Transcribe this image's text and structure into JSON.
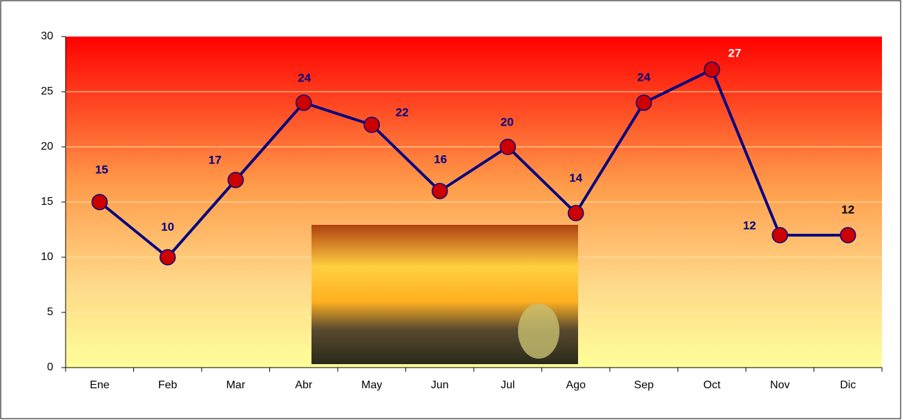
{
  "chart_data": {
    "type": "line",
    "categories": [
      "Ene",
      "Feb",
      "Mar",
      "Abr",
      "May",
      "Jun",
      "Jul",
      "Ago",
      "Sep",
      "Oct",
      "Nov",
      "Dic"
    ],
    "series": [
      {
        "values": [
          15,
          10,
          17,
          24,
          22,
          16,
          20,
          14,
          24,
          27,
          12,
          12
        ],
        "color": "#000080",
        "marker_color": "#cc0000"
      }
    ],
    "label_colors": [
      "#000080",
      "#000080",
      "#000080",
      "#000080",
      "#000080",
      "#000080",
      "#000080",
      "#000080",
      "#000080",
      "#ffffff",
      "#000080",
      "#000000"
    ],
    "ylim": [
      0,
      30
    ],
    "yticks": [
      0,
      5,
      10,
      15,
      20,
      25,
      30
    ],
    "grid": true
  }
}
